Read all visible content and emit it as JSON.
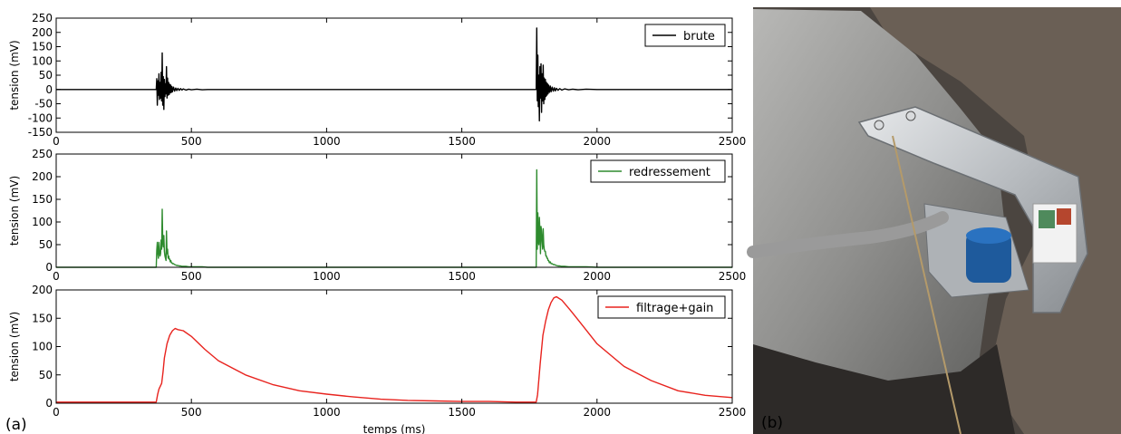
{
  "panel_labels": {
    "a": "(a)",
    "b": "(b)"
  },
  "chart_data": [
    {
      "type": "line",
      "ylabel": "tension (mV)",
      "xlabel": "",
      "xlim": [
        0,
        2500
      ],
      "ylim": [
        -150,
        250
      ],
      "xticks": [
        0,
        500,
        1000,
        1500,
        2000,
        2500
      ],
      "yticks": [
        -150,
        -100,
        -50,
        0,
        50,
        100,
        150,
        200,
        250
      ],
      "legend_position": "top-right",
      "grid": false,
      "series": [
        {
          "name": "brute",
          "color": "#000000",
          "x": [
            0,
            370,
            372,
            374,
            376,
            378,
            380,
            382,
            384,
            386,
            388,
            390,
            392,
            394,
            396,
            398,
            400,
            402,
            404,
            406,
            408,
            410,
            412,
            414,
            416,
            418,
            420,
            422,
            424,
            426,
            428,
            430,
            434,
            438,
            442,
            446,
            450,
            455,
            460,
            465,
            470,
            480,
            490,
            500,
            520,
            540,
            560,
            600,
            1000,
            1500,
            1775,
            1777,
            1779,
            1781,
            1783,
            1785,
            1787,
            1789,
            1791,
            1793,
            1795,
            1797,
            1799,
            1801,
            1803,
            1805,
            1807,
            1809,
            1811,
            1813,
            1815,
            1817,
            1819,
            1821,
            1824,
            1827,
            1830,
            1834,
            1838,
            1842,
            1846,
            1850,
            1856,
            1862,
            1870,
            1880,
            1895,
            1910,
            1930,
            1960,
            2000,
            2500
          ],
          "y": [
            0,
            0,
            38,
            -55,
            30,
            -20,
            55,
            -35,
            25,
            -30,
            60,
            -40,
            128,
            -55,
            45,
            -70,
            35,
            -25,
            20,
            -15,
            80,
            -30,
            40,
            -20,
            25,
            -18,
            18,
            -12,
            15,
            -10,
            10,
            -8,
            8,
            -6,
            5,
            -4,
            4,
            -3,
            3,
            -2,
            2,
            -2,
            1,
            -1,
            1,
            -1,
            0,
            0,
            0,
            0,
            0,
            215,
            -40,
            120,
            -60,
            50,
            -110,
            80,
            -30,
            90,
            -80,
            55,
            -40,
            85,
            -50,
            40,
            -35,
            35,
            -25,
            25,
            -20,
            20,
            -15,
            15,
            -10,
            12,
            -8,
            8,
            -6,
            6,
            -5,
            4,
            -3,
            3,
            -2,
            2,
            -1,
            1,
            -1,
            1,
            0,
            0
          ]
        }
      ]
    },
    {
      "type": "line",
      "ylabel": "tension (mV)",
      "xlabel": "",
      "xlim": [
        0,
        2500
      ],
      "ylim": [
        0,
        250
      ],
      "xticks": [
        0,
        500,
        1000,
        1500,
        2000,
        2500
      ],
      "yticks": [
        0,
        50,
        100,
        150,
        200,
        250
      ],
      "legend_position": "top-right",
      "grid": false,
      "series": [
        {
          "name": "redressement",
          "color": "#2e8b2e",
          "x": [
            0,
            370,
            372,
            374,
            376,
            378,
            380,
            382,
            384,
            386,
            388,
            390,
            392,
            394,
            396,
            398,
            400,
            402,
            404,
            406,
            408,
            410,
            412,
            414,
            416,
            418,
            420,
            422,
            424,
            426,
            428,
            430,
            434,
            438,
            442,
            446,
            450,
            455,
            460,
            465,
            470,
            480,
            490,
            500,
            520,
            540,
            560,
            600,
            1000,
            1500,
            1775,
            1777,
            1779,
            1781,
            1783,
            1785,
            1787,
            1789,
            1791,
            1793,
            1795,
            1797,
            1799,
            1801,
            1803,
            1805,
            1807,
            1809,
            1811,
            1813,
            1815,
            1817,
            1819,
            1821,
            1824,
            1827,
            1830,
            1834,
            1838,
            1842,
            1846,
            1850,
            1856,
            1862,
            1870,
            1880,
            1895,
            1910,
            1930,
            1960,
            2000,
            2500
          ],
          "y": [
            0,
            0,
            38,
            55,
            30,
            20,
            55,
            35,
            25,
            30,
            60,
            40,
            128,
            55,
            45,
            70,
            35,
            25,
            20,
            15,
            80,
            30,
            40,
            20,
            25,
            18,
            18,
            12,
            15,
            10,
            10,
            8,
            8,
            6,
            5,
            4,
            4,
            3,
            3,
            2,
            2,
            2,
            1,
            1,
            1,
            1,
            0,
            0,
            0,
            0,
            0,
            215,
            40,
            120,
            60,
            50,
            110,
            80,
            30,
            90,
            80,
            55,
            40,
            85,
            50,
            40,
            35,
            35,
            25,
            25,
            20,
            20,
            15,
            15,
            10,
            12,
            8,
            8,
            6,
            6,
            5,
            4,
            3,
            3,
            2,
            2,
            1,
            1,
            1,
            1,
            0,
            0
          ]
        }
      ]
    },
    {
      "type": "line",
      "ylabel": "tension (mV)",
      "xlabel": "temps (ms)",
      "xlim": [
        0,
        2500
      ],
      "ylim": [
        0,
        200
      ],
      "xticks": [
        0,
        500,
        1000,
        1500,
        2000,
        2500
      ],
      "yticks": [
        0,
        50,
        100,
        150,
        200
      ],
      "legend_position": "top-right",
      "grid": false,
      "series": [
        {
          "name": "filtrage+gain",
          "color": "#e8231e",
          "x": [
            0,
            370,
            375,
            380,
            390,
            395,
            400,
            410,
            420,
            430,
            440,
            450,
            470,
            500,
            550,
            600,
            700,
            800,
            900,
            1000,
            1100,
            1200,
            1300,
            1400,
            1500,
            1600,
            1700,
            1775,
            1780,
            1790,
            1800,
            1810,
            1820,
            1830,
            1840,
            1850,
            1870,
            1900,
            1950,
            2000,
            2100,
            2200,
            2300,
            2400,
            2500
          ],
          "y": [
            2,
            2,
            15,
            25,
            35,
            55,
            80,
            105,
            120,
            128,
            132,
            130,
            128,
            118,
            95,
            75,
            50,
            33,
            22,
            16,
            11,
            7,
            5,
            4,
            3,
            3,
            2,
            2,
            15,
            70,
            120,
            145,
            165,
            178,
            186,
            188,
            182,
            165,
            135,
            105,
            65,
            40,
            22,
            14,
            10
          ]
        }
      ]
    }
  ]
}
